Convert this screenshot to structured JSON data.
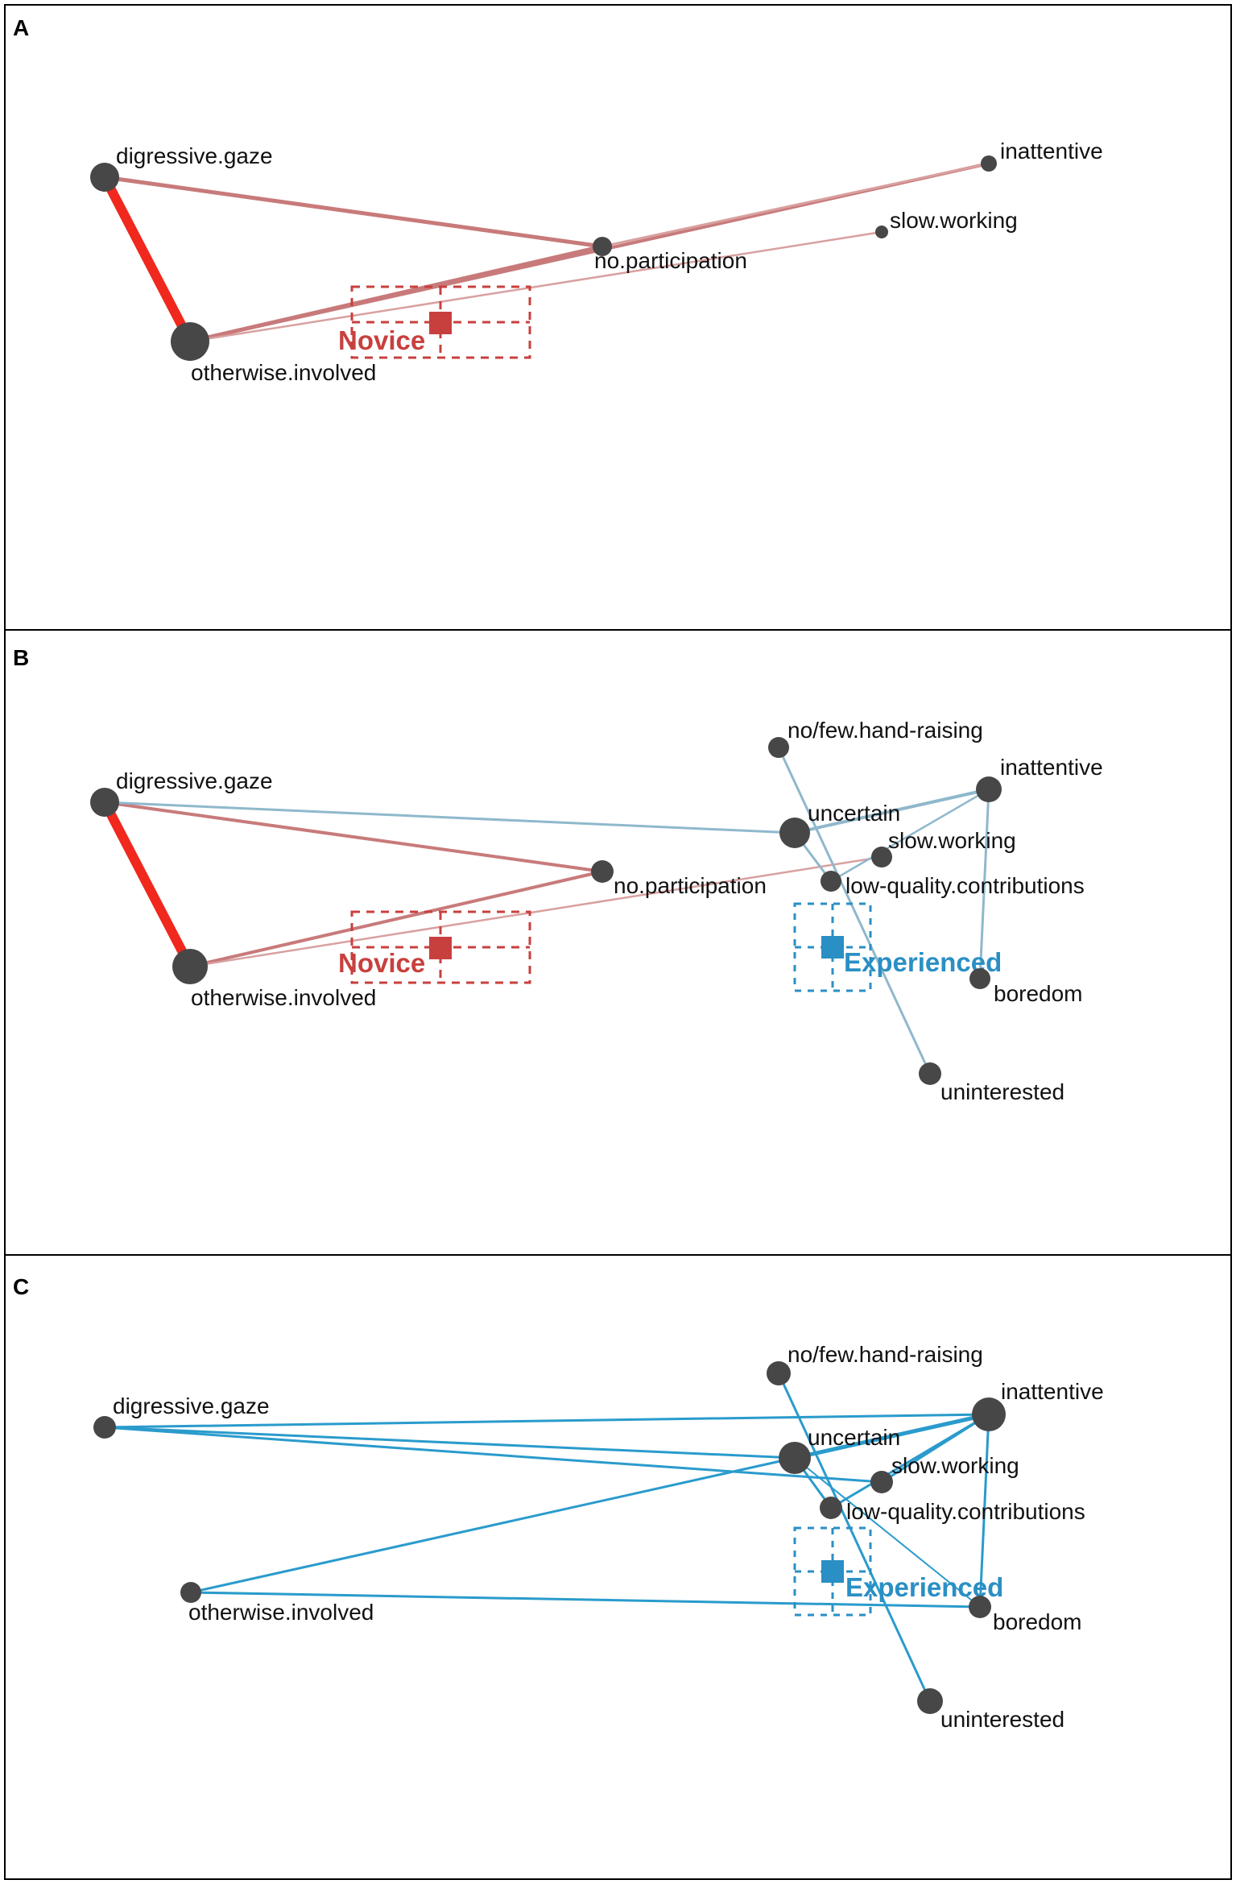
{
  "colors": {
    "novice": "#c8403e",
    "novice_edge": "#c87a7a",
    "strong_edge": "#f0281e",
    "experienced": "#2a8fc4",
    "experienced_edge": "#8fb8cc",
    "experienced_edge_strong": "#2a9bcc",
    "node": "#474747",
    "frame": "#000000"
  },
  "panels": [
    {
      "letter": "A",
      "nodes": {
        "digressive_gaze": "digressive.gaze",
        "otherwise_involved": "otherwise.involved",
        "no_participation": "no.participation",
        "inattentive": "inattentive",
        "slow_working": "slow.working"
      },
      "groups": {
        "novice": "Novice"
      }
    },
    {
      "letter": "B",
      "nodes": {
        "digressive_gaze": "digressive.gaze",
        "otherwise_involved": "otherwise.involved",
        "no_participation": "no.participation",
        "no_few_hand_raising": "no/few.hand-raising",
        "inattentive": "inattentive",
        "uncertain": "uncertain",
        "slow_working": "slow.working",
        "low_quality_contributions": "low-quality.contributions",
        "boredom": "boredom",
        "uninterested": "uninterested"
      },
      "groups": {
        "novice": "Novice",
        "experienced": "Experienced"
      }
    },
    {
      "letter": "C",
      "nodes": {
        "digressive_gaze": "digressive.gaze",
        "otherwise_involved": "otherwise.involved",
        "no_few_hand_raising": "no/few.hand-raising",
        "inattentive": "inattentive",
        "uncertain": "uncertain",
        "slow_working": "slow.working",
        "low_quality_contributions": "low-quality.contributions",
        "boredom": "boredom",
        "uninterested": "uninterested"
      },
      "groups": {
        "experienced": "Experienced"
      }
    }
  ]
}
